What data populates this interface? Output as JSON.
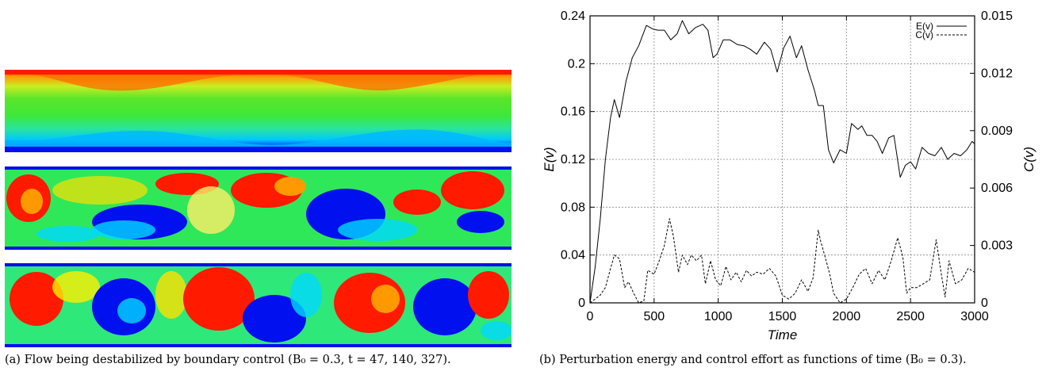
{
  "figure_a": {
    "panels": [
      {
        "name": "flow-snapshot-t47"
      },
      {
        "name": "flow-snapshot-t140"
      },
      {
        "name": "flow-snapshot-t327"
      }
    ],
    "colors": {
      "red": "#ff1a00",
      "orange": "#ff9900",
      "yellow": "#ffee00",
      "green": "#22ee22",
      "cyan": "#00e0ff",
      "blue": "#0010ee"
    },
    "caption": "(a) Flow being destabilized by boundary control (B₀ = 0.3, t = 47, 140, 327)."
  },
  "figure_b": {
    "caption": "(b) Perturbation energy and control effort as functions of time (B₀ = 0.3)."
  },
  "chart_data": {
    "type": "line",
    "title": "",
    "xlabel": "Time",
    "ylabel": "E(v)",
    "y2label": "C(v)",
    "xlim": [
      0,
      3000
    ],
    "ylim": [
      0,
      0.24
    ],
    "y2lim": [
      0,
      0.015
    ],
    "x_ticks": [
      "0",
      "500",
      "1000",
      "1500",
      "2000",
      "2500",
      "3000"
    ],
    "y_ticks": [
      "0",
      "0.04",
      "0.08",
      "0.12",
      "0.16",
      "0.2",
      "0.24"
    ],
    "y2_ticks": [
      "0",
      "0.003",
      "0.006",
      "0.009",
      "0.012",
      "0.015"
    ],
    "grid": true,
    "legend_position": "top-right",
    "series": [
      {
        "name": "E(v)",
        "axis": "left",
        "style": "solid",
        "x": [
          0,
          40,
          80,
          120,
          160,
          190,
          230,
          280,
          330,
          380,
          440,
          490,
          530,
          580,
          630,
          680,
          720,
          770,
          820,
          880,
          920,
          960,
          990,
          1040,
          1090,
          1150,
          1200,
          1250,
          1300,
          1360,
          1410,
          1460,
          1510,
          1560,
          1610,
          1650,
          1700,
          1750,
          1780,
          1820,
          1860,
          1900,
          1950,
          2000,
          2040,
          2090,
          2120,
          2160,
          2200,
          2240,
          2280,
          2330,
          2370,
          2420,
          2460,
          2500,
          2540,
          2590,
          2640,
          2690,
          2740,
          2790,
          2840,
          2890,
          2940,
          2980,
          3000
        ],
        "values": [
          0.0,
          0.03,
          0.07,
          0.12,
          0.155,
          0.17,
          0.155,
          0.185,
          0.205,
          0.215,
          0.232,
          0.229,
          0.228,
          0.228,
          0.22,
          0.225,
          0.236,
          0.225,
          0.23,
          0.233,
          0.228,
          0.205,
          0.208,
          0.22,
          0.22,
          0.216,
          0.215,
          0.212,
          0.208,
          0.218,
          0.212,
          0.193,
          0.213,
          0.223,
          0.205,
          0.215,
          0.195,
          0.178,
          0.165,
          0.165,
          0.128,
          0.117,
          0.128,
          0.125,
          0.15,
          0.145,
          0.148,
          0.14,
          0.14,
          0.135,
          0.125,
          0.138,
          0.14,
          0.105,
          0.115,
          0.118,
          0.112,
          0.13,
          0.125,
          0.123,
          0.13,
          0.12,
          0.125,
          0.123,
          0.128,
          0.135,
          0.133
        ]
      },
      {
        "name": "C(v)",
        "axis": "right",
        "style": "dashed",
        "x": [
          0,
          40,
          80,
          120,
          160,
          190,
          230,
          270,
          300,
          340,
          380,
          420,
          450,
          500,
          540,
          580,
          620,
          650,
          690,
          720,
          760,
          790,
          830,
          870,
          900,
          940,
          980,
          1020,
          1060,
          1100,
          1140,
          1180,
          1220,
          1260,
          1300,
          1350,
          1400,
          1450,
          1500,
          1550,
          1600,
          1650,
          1700,
          1740,
          1780,
          1800,
          1830,
          1870,
          1900,
          1950,
          2000,
          2050,
          2100,
          2150,
          2200,
          2250,
          2300,
          2350,
          2400,
          2440,
          2470,
          2500,
          2550,
          2600,
          2650,
          2700,
          2740,
          2770,
          2800,
          2850,
          2900,
          2950,
          3000
        ],
        "values": [
          0.0,
          0.0002,
          0.0004,
          0.0008,
          0.0018,
          0.0025,
          0.0023,
          0.0008,
          0.0011,
          0.0005,
          0.0,
          0.0001,
          0.0017,
          0.0015,
          0.0022,
          0.003,
          0.0044,
          0.0035,
          0.0016,
          0.0025,
          0.002,
          0.0025,
          0.0022,
          0.0025,
          0.001,
          0.0022,
          0.0012,
          0.0009,
          0.0019,
          0.0012,
          0.0016,
          0.0011,
          0.0017,
          0.0014,
          0.0016,
          0.0015,
          0.0018,
          0.0014,
          0.0004,
          0.0002,
          0.0005,
          0.0012,
          0.0006,
          0.0013,
          0.0038,
          0.0032,
          0.0025,
          0.0015,
          0.0005,
          0.0,
          0.0002,
          0.0008,
          0.0015,
          0.0018,
          0.001,
          0.0017,
          0.0012,
          0.0022,
          0.0034,
          0.0024,
          0.0005,
          0.0008,
          0.0008,
          0.001,
          0.0012,
          0.0033,
          0.0015,
          0.0003,
          0.0022,
          0.001,
          0.0012,
          0.0018,
          0.0016
        ]
      }
    ]
  }
}
